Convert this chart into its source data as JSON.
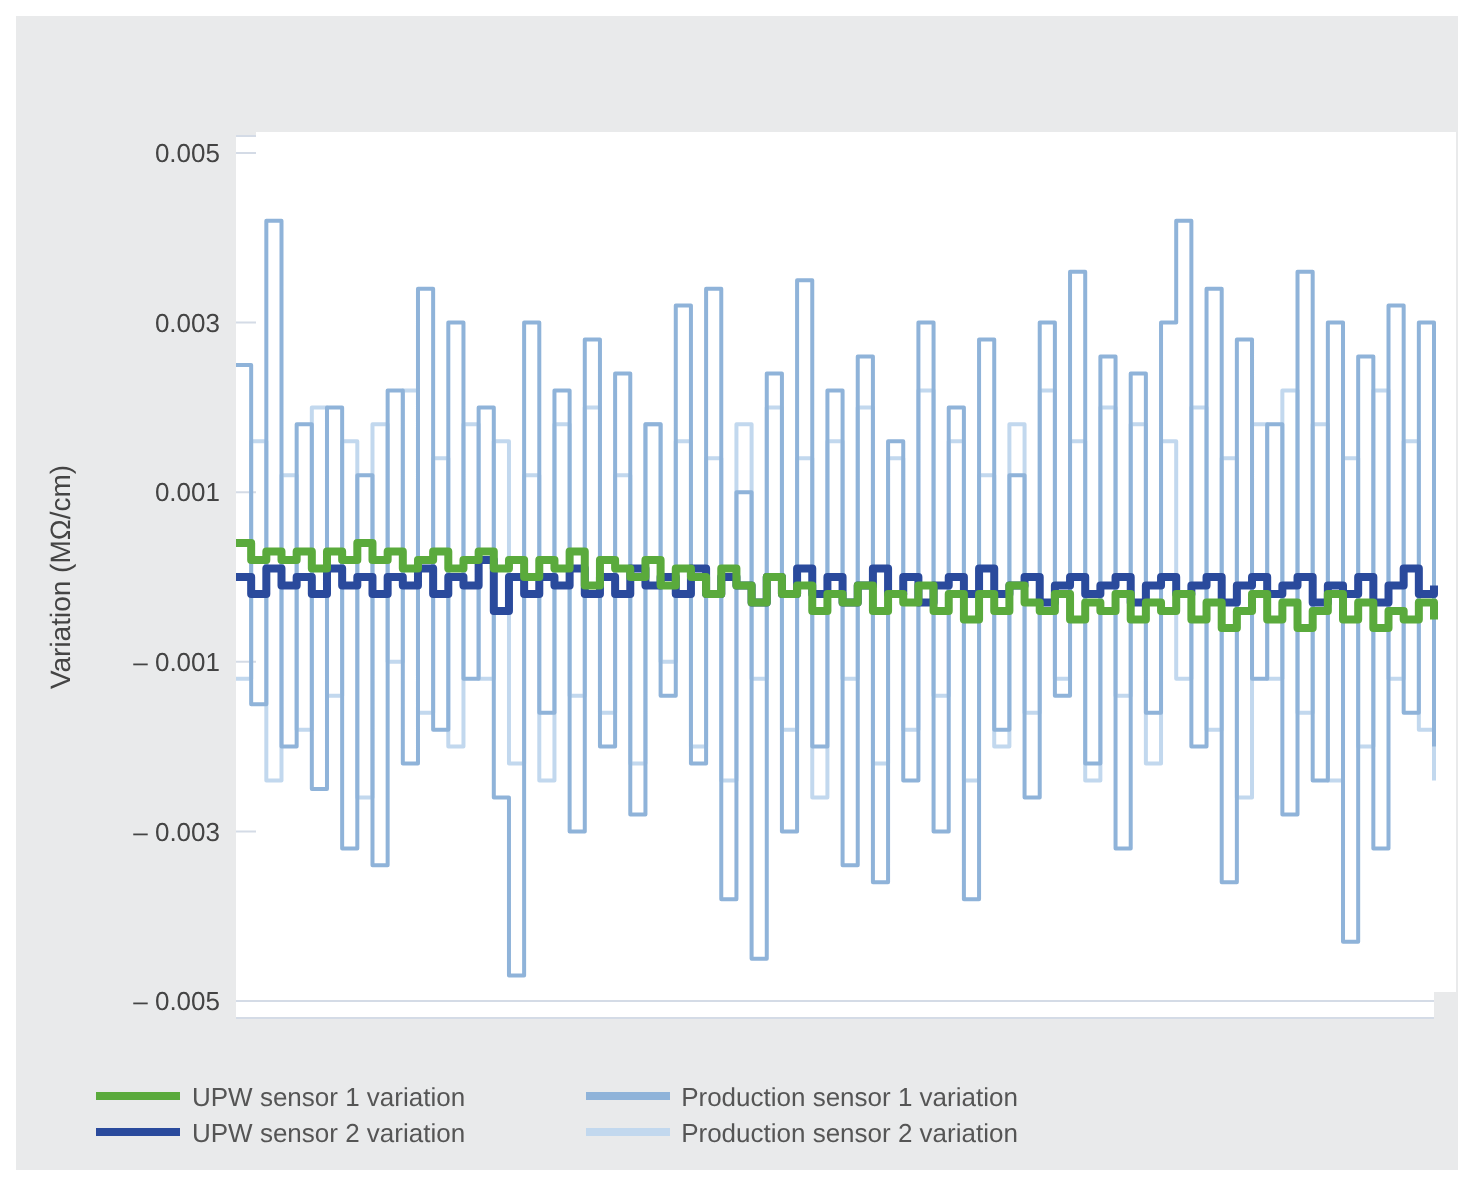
{
  "chart_data": {
    "type": "step",
    "ylabel": "Variation (MΩ/cm)",
    "categories": [
      null,
      null,
      null,
      null,
      null,
      null,
      null,
      null,
      null,
      null,
      null,
      null,
      null,
      null,
      null,
      null,
      null,
      null,
      null,
      null,
      null,
      null,
      null,
      null,
      null,
      null,
      null,
      null,
      null,
      null,
      null,
      null,
      null,
      null,
      null,
      null,
      null,
      null,
      null,
      null,
      null,
      null,
      null,
      null,
      null,
      null,
      null,
      null,
      null,
      null,
      null,
      null,
      null,
      null,
      null,
      null,
      null,
      null,
      null,
      null,
      null,
      null,
      null,
      null,
      null,
      null,
      null,
      null,
      null,
      null,
      null,
      null,
      null,
      null,
      null,
      null,
      null,
      null,
      null,
      null
    ],
    "ylim": [
      -0.0052,
      0.0052
    ],
    "yticks": [
      {
        "value": -0.005,
        "label": "– 0.005"
      },
      {
        "value": -0.003,
        "label": "– 0.003"
      },
      {
        "value": -0.001,
        "label": "– 0.001"
      },
      0.001,
      0.003,
      0.005
    ],
    "grid": "y",
    "legend": "bottom",
    "marker": "none",
    "line_style": "solid",
    "series": [
      {
        "name": "UPW sensor 1 variation",
        "color": "#5aaa3c",
        "values": [
          0.0004,
          0.0002,
          0.0003,
          0.0002,
          0.0003,
          0.0001,
          0.0003,
          0.0002,
          0.0004,
          0.0002,
          0.0003,
          0.0001,
          0.0002,
          0.0003,
          0.0001,
          0.0002,
          0.0003,
          0.0001,
          0.0002,
          0.0,
          0.0002,
          0.0001,
          0.0003,
          -0.0001,
          0.0002,
          0.0001,
          0.0,
          0.0002,
          -0.0001,
          0.0001,
          0.0,
          -0.0002,
          0.0001,
          -0.0001,
          -0.0003,
          0.0,
          -0.0002,
          -0.0001,
          -0.0004,
          -0.0002,
          -0.0003,
          -0.0001,
          -0.0004,
          -0.0002,
          -0.0003,
          -0.0001,
          -0.0004,
          -0.0002,
          -0.0005,
          -0.0002,
          -0.0004,
          -0.0001,
          -0.0003,
          -0.0004,
          -0.0002,
          -0.0005,
          -0.0003,
          -0.0004,
          -0.0002,
          -0.0005,
          -0.0003,
          -0.0004,
          -0.0002,
          -0.0005,
          -0.0003,
          -0.0006,
          -0.0004,
          -0.0002,
          -0.0005,
          -0.0003,
          -0.0006,
          -0.0004,
          -0.0002,
          -0.0005,
          -0.0003,
          -0.0006,
          -0.0004,
          -0.0005,
          -0.0003,
          -0.0005
        ]
      },
      {
        "name": "UPW sensor 2 variation",
        "color": "#2a4a9c",
        "values": [
          0.0,
          -0.0002,
          0.0001,
          -0.0001,
          0.0,
          -0.0002,
          0.0001,
          -0.0001,
          0.0,
          -0.0002,
          0.0,
          -0.0001,
          0.0001,
          -0.0002,
          0.0,
          -0.0001,
          0.0002,
          -0.0004,
          0.0,
          -0.0002,
          0.0,
          -0.0001,
          0.0001,
          -0.0002,
          0.0,
          -0.0002,
          0.0001,
          -0.0001,
          0.0,
          -0.0002,
          0.0001,
          -0.0002,
          0.0,
          -0.0001,
          -0.0003,
          0.0,
          -0.0002,
          0.0001,
          -0.0002,
          0.0,
          -0.0003,
          -0.0001,
          0.0001,
          -0.0002,
          0.0,
          -0.0003,
          -0.0001,
          0.0,
          -0.0002,
          0.0001,
          -0.0002,
          -0.0001,
          0.0,
          -0.0003,
          -0.0001,
          0.0,
          -0.0002,
          -0.0001,
          0.0,
          -0.0003,
          -0.0001,
          0.0,
          -0.0002,
          -0.0001,
          0.0,
          -0.0003,
          -0.0001,
          0.0,
          -0.0002,
          -0.0001,
          0.0,
          -0.0003,
          -0.0001,
          -0.0002,
          0.0,
          -0.0003,
          -0.0001,
          0.0001,
          -0.0002,
          -0.0001
        ]
      },
      {
        "name": "Production sensor 1 variation",
        "color": "#8fb3d9",
        "values": [
          0.0025,
          -0.0015,
          0.0042,
          -0.002,
          0.0018,
          -0.0025,
          0.002,
          -0.0032,
          0.0012,
          -0.0034,
          0.0022,
          -0.0022,
          0.0034,
          -0.0018,
          0.003,
          -0.0012,
          0.002,
          -0.0026,
          -0.0047,
          0.003,
          -0.0016,
          0.0022,
          -0.003,
          0.0028,
          -0.002,
          0.0024,
          -0.0028,
          0.0018,
          -0.0014,
          0.0032,
          -0.0022,
          0.0034,
          -0.0038,
          0.001,
          -0.0045,
          0.0024,
          -0.003,
          0.0035,
          -0.002,
          0.0022,
          -0.0034,
          0.0026,
          -0.0036,
          0.0016,
          -0.0024,
          0.003,
          -0.003,
          0.002,
          -0.0038,
          0.0028,
          -0.0018,
          0.0012,
          -0.0026,
          0.003,
          -0.0014,
          0.0036,
          -0.0022,
          0.0026,
          -0.0032,
          0.0024,
          -0.0016,
          0.003,
          0.0042,
          -0.002,
          0.0034,
          -0.0036,
          0.0028,
          -0.0012,
          0.0018,
          -0.0028,
          0.0036,
          -0.0024,
          0.003,
          -0.0043,
          0.0026,
          -0.0032,
          0.0032,
          -0.0016,
          0.003,
          -0.002
        ]
      },
      {
        "name": "Production sensor 2 variation",
        "color": "#c2d8ee",
        "values": [
          -0.0012,
          0.0016,
          -0.0024,
          0.0012,
          -0.0018,
          0.002,
          -0.0014,
          0.0016,
          -0.0026,
          0.0018,
          -0.001,
          0.0022,
          -0.0016,
          0.0014,
          -0.002,
          0.0018,
          -0.0012,
          0.0016,
          -0.0022,
          0.0012,
          -0.0024,
          0.0018,
          -0.0014,
          0.002,
          -0.0016,
          0.0012,
          -0.0022,
          0.0018,
          -0.001,
          0.0016,
          -0.002,
          0.0014,
          -0.0024,
          0.0018,
          -0.0012,
          0.002,
          -0.0018,
          0.0014,
          -0.0026,
          0.0016,
          -0.0012,
          0.002,
          -0.0022,
          0.0014,
          -0.0018,
          0.0022,
          -0.0014,
          0.0016,
          -0.0024,
          0.0012,
          -0.002,
          0.0018,
          -0.0016,
          0.0022,
          -0.0012,
          0.0016,
          -0.0024,
          0.002,
          -0.0014,
          0.0018,
          -0.0022,
          0.0016,
          -0.0012,
          0.002,
          -0.0018,
          0.0014,
          -0.0026,
          0.0018,
          -0.0012,
          0.0022,
          -0.0016,
          0.0018,
          -0.0024,
          0.0014,
          -0.002,
          0.0022,
          -0.0012,
          0.0016,
          -0.0018,
          -0.0024
        ]
      }
    ]
  }
}
